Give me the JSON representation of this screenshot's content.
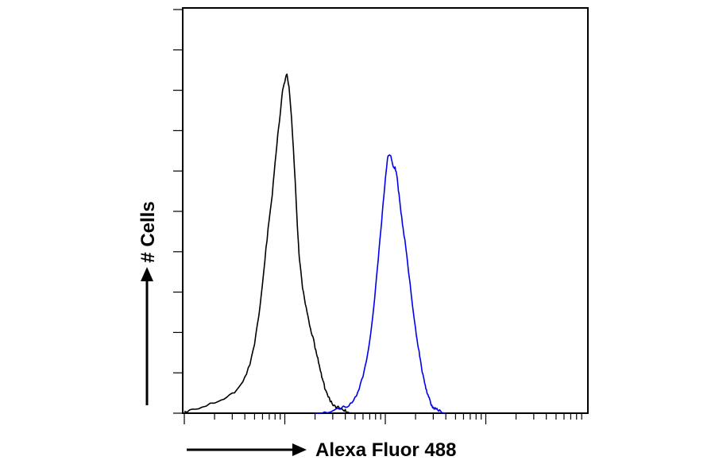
{
  "chart_data": {
    "type": "line",
    "title": "",
    "xlabel": "Alexa Fluor 488",
    "ylabel": "# Cells",
    "x_scale": "log",
    "xlim": [
      1,
      10000
    ],
    "ylim": [
      0,
      100
    ],
    "grid": false,
    "legend": "none",
    "series": [
      {
        "color": "#000000",
        "x": [
          1,
          1.2,
          1.5,
          2,
          2.5,
          3,
          3.5,
          4,
          4.5,
          5,
          5.5,
          6,
          6.5,
          7,
          7.5,
          8,
          8.5,
          9,
          9.5,
          10,
          10.5,
          11,
          11.5,
          12,
          12.5,
          13,
          13.5,
          14,
          15,
          16,
          17,
          18,
          19,
          20,
          21,
          22,
          23,
          24,
          25,
          27,
          29,
          31,
          33,
          36,
          39,
          42,
          46,
          50
        ],
        "y": [
          0.5,
          1,
          1.5,
          2.5,
          3.5,
          5,
          6.5,
          9,
          12,
          17,
          24,
          32,
          41,
          48,
          54,
          62,
          69,
          74,
          80,
          82,
          84,
          81,
          75,
          68,
          60,
          52,
          44,
          38,
          31,
          27,
          24,
          21,
          19,
          16,
          14,
          12,
          10,
          8,
          6,
          4,
          3,
          2,
          1.5,
          1,
          0.5,
          0.3,
          0.1,
          0
        ]
      },
      {
        "color": "#0000ee",
        "x": [
          20,
          25,
          30,
          35,
          40,
          45,
          50,
          55,
          60,
          65,
          70,
          75,
          80,
          85,
          90,
          95,
          100,
          105,
          110,
          115,
          120,
          125,
          130,
          135,
          140,
          145,
          150,
          160,
          170,
          180,
          190,
          200,
          210,
          220,
          230,
          240,
          250,
          260,
          270,
          280,
          290,
          300,
          320,
          340,
          360,
          380,
          400
        ],
        "y": [
          0,
          0.3,
          0.6,
          1,
          1.5,
          2.5,
          4,
          6,
          9,
          13,
          18,
          24,
          31,
          38,
          45,
          52,
          58,
          63,
          64,
          63,
          61,
          61,
          59,
          55,
          52,
          49,
          46,
          41,
          35,
          30,
          25,
          21,
          17,
          14,
          11,
          9,
          7,
          5,
          4,
          3,
          2,
          1.5,
          1,
          0.5,
          0.3,
          0.1,
          0
        ]
      }
    ]
  }
}
